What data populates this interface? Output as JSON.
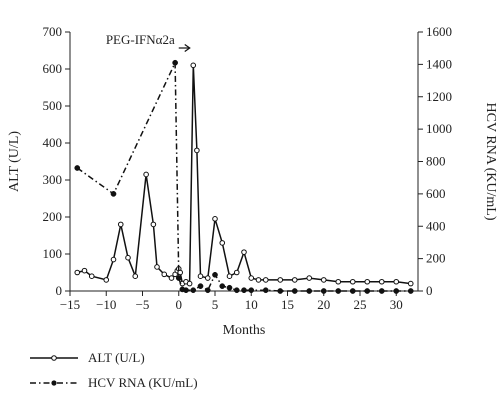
{
  "chart_data": {
    "type": "line",
    "xlabel": "Months",
    "ylabel_left": "ALT (U/L)",
    "ylabel_right": "HCV RNA (KU/mL)",
    "xlim": [
      -15,
      33
    ],
    "ylim_left": [
      0,
      700
    ],
    "ylim_right": [
      0,
      1600
    ],
    "x_ticks": [
      -15,
      -10,
      -5,
      0,
      5,
      10,
      15,
      20,
      25,
      30
    ],
    "y_ticks_left": [
      0,
      100,
      200,
      300,
      400,
      500,
      600,
      700
    ],
    "y_ticks_right": [
      0,
      200,
      400,
      600,
      800,
      1000,
      1200,
      1400,
      1600
    ],
    "grid": false,
    "legend_position": "bottom-left",
    "annotation": {
      "text": "PEG-IFNα2a",
      "x": 0
    },
    "series": [
      {
        "name": "ALT (U/L)",
        "axis": "left",
        "style": "solid",
        "marker": "open-circle",
        "x": [
          -14,
          -13,
          -12,
          -10,
          -9,
          -8,
          -7,
          -6,
          -4.5,
          -3.5,
          -3,
          -2,
          -1,
          -0.5,
          -0.2,
          0,
          0.2,
          0.5,
          1,
          1.5,
          2,
          2.5,
          3,
          4,
          5,
          6,
          7,
          8,
          9,
          10,
          11,
          12,
          14,
          16,
          18,
          20,
          22,
          24,
          26,
          28,
          30,
          32
        ],
        "y": [
          50,
          55,
          40,
          30,
          85,
          180,
          90,
          40,
          315,
          180,
          65,
          45,
          35,
          45,
          55,
          60,
          50,
          20,
          25,
          20,
          610,
          380,
          40,
          35,
          195,
          130,
          40,
          50,
          105,
          35,
          30,
          30,
          30,
          30,
          35,
          30,
          25,
          25,
          25,
          25,
          25,
          20
        ]
      },
      {
        "name": "HCV RNA (KU/mL)",
        "axis": "right",
        "style": "dash-dot",
        "marker": "filled-circle",
        "x": [
          -14,
          -9,
          -0.5,
          0,
          0.5,
          1,
          2,
          3,
          4,
          5,
          6,
          7,
          8,
          9,
          10,
          12,
          14,
          16,
          18,
          20,
          22,
          24,
          26,
          28,
          30,
          32
        ],
        "y": [
          760,
          600,
          1410,
          80,
          10,
          5,
          5,
          30,
          5,
          100,
          30,
          20,
          5,
          5,
          5,
          5,
          0,
          0,
          0,
          0,
          0,
          0,
          0,
          0,
          0,
          0
        ]
      }
    ]
  }
}
